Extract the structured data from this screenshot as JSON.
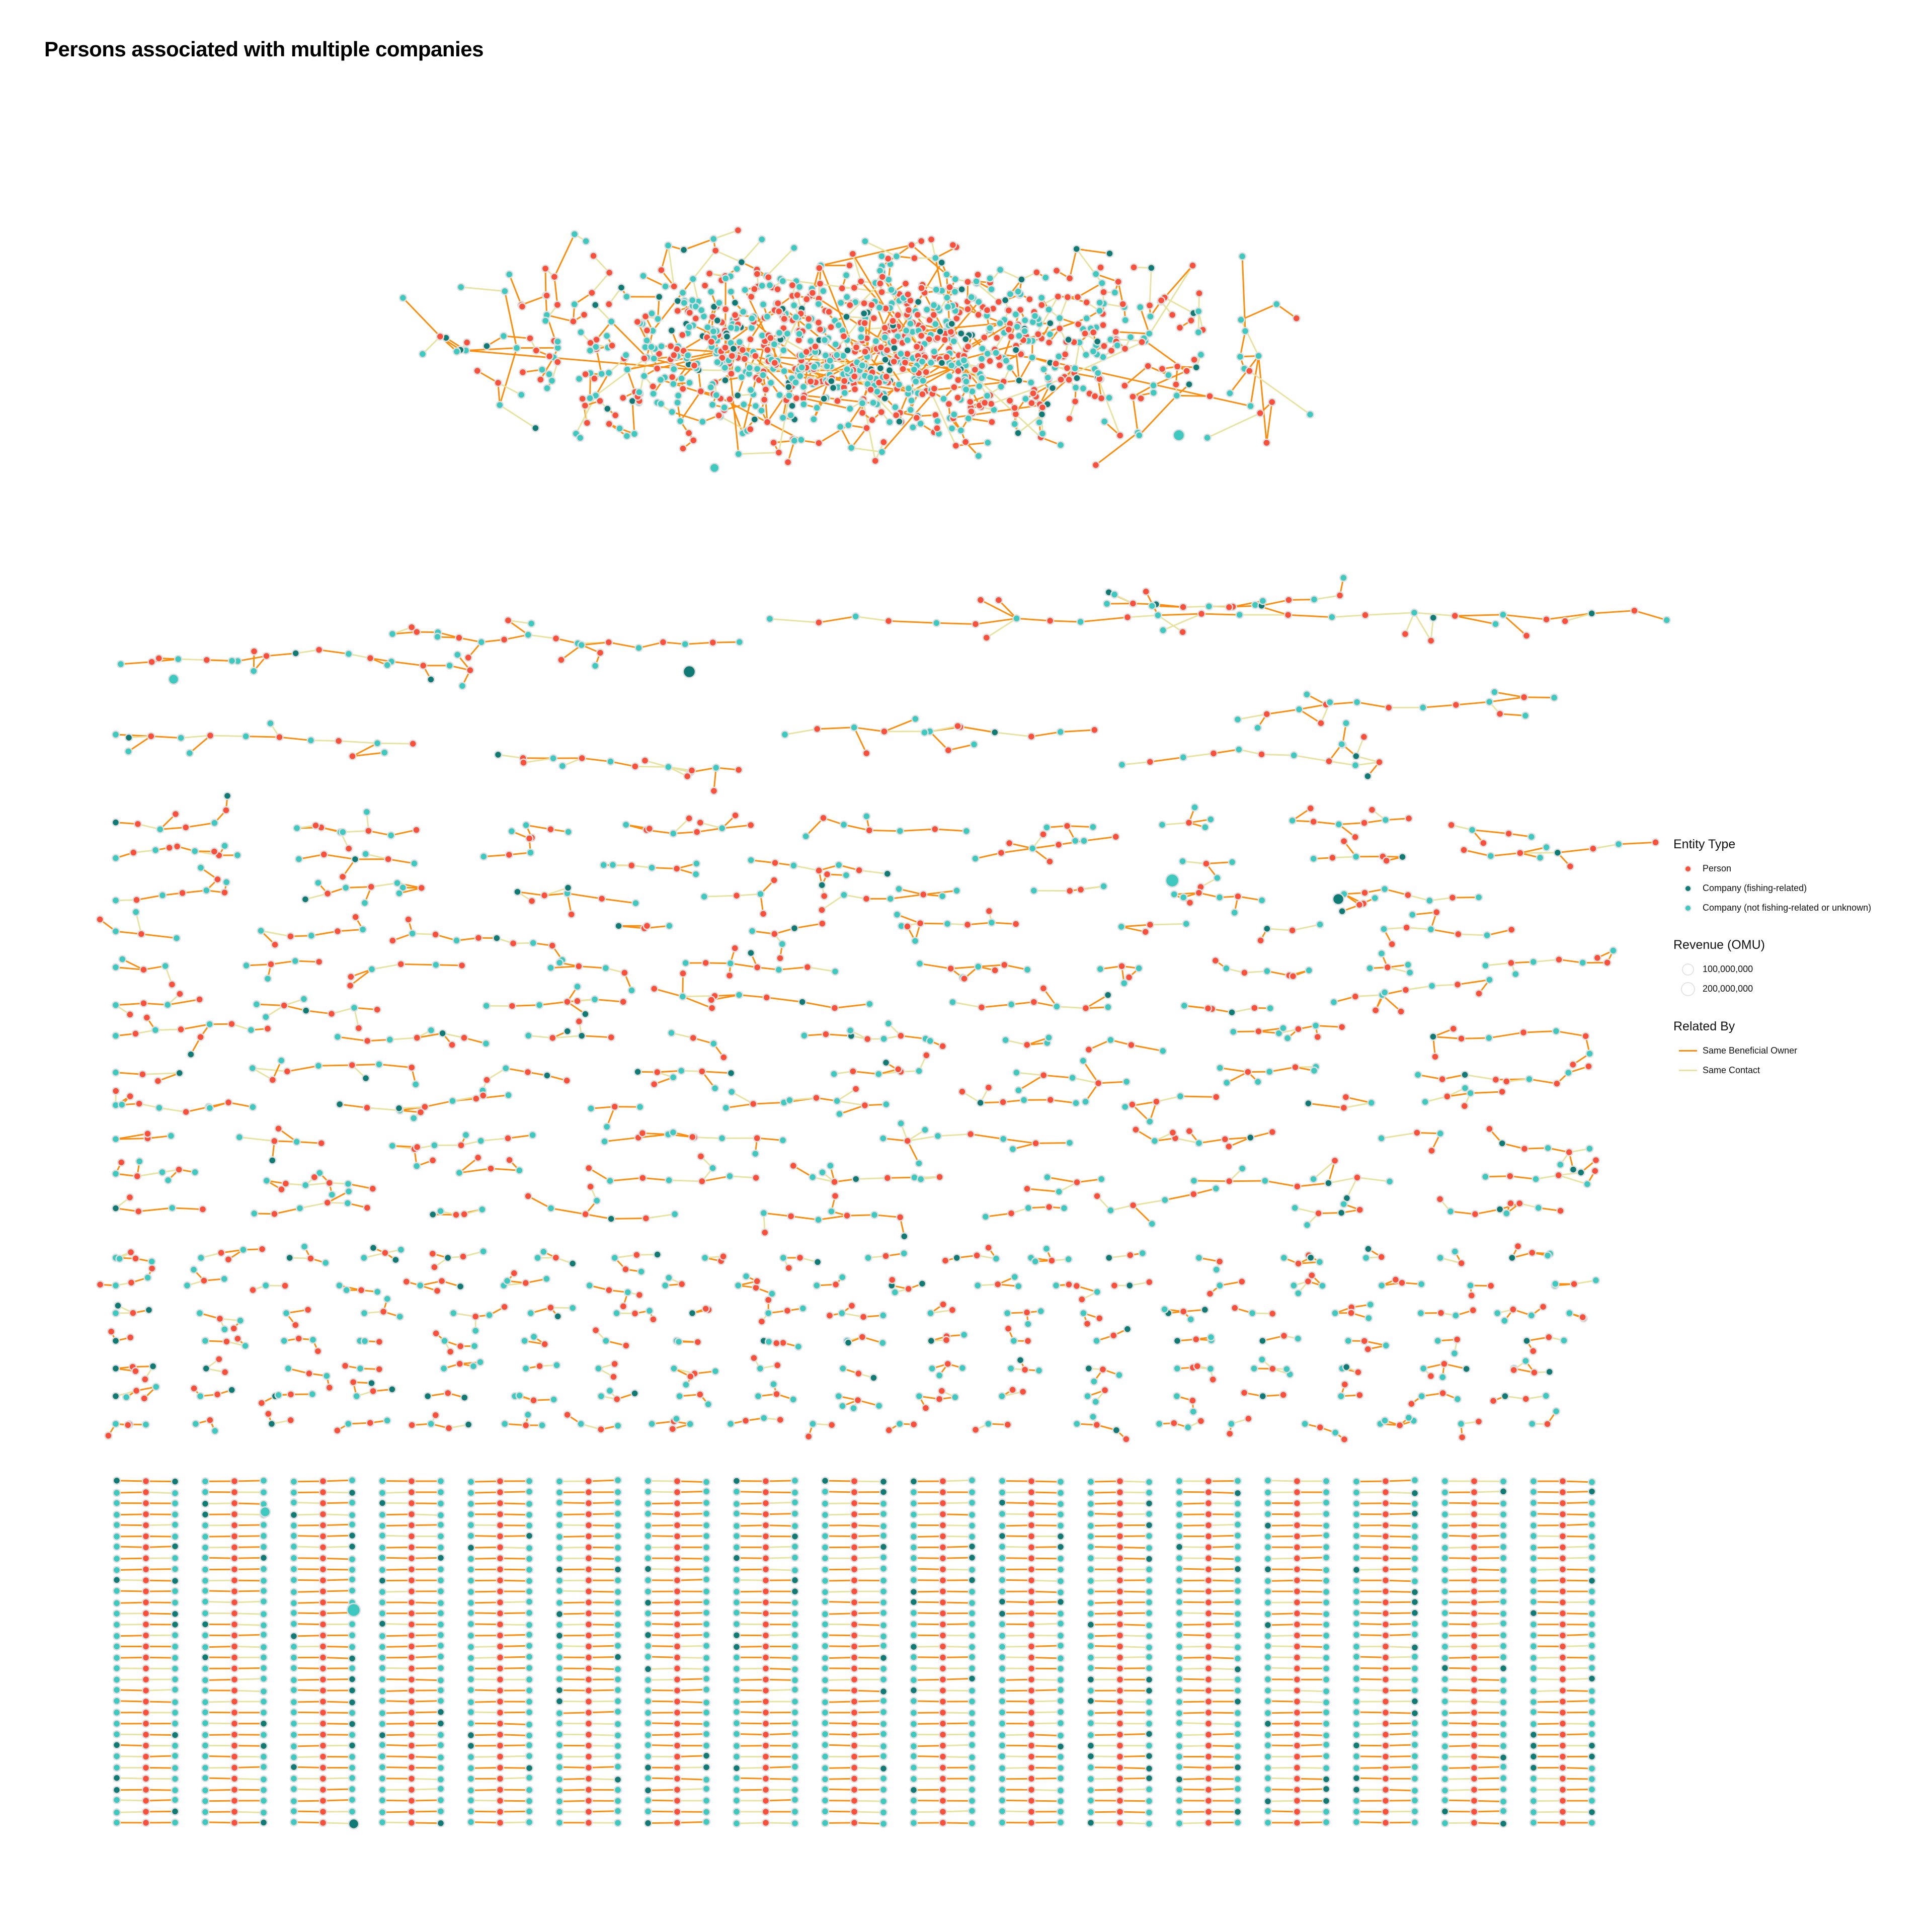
{
  "title": "Persons associated with multiple companies",
  "colors": {
    "person": "#f94f3b",
    "company_fishing": "#107a74",
    "company_other": "#3ec9c0",
    "same_beneficial_owner": "#ff8c0a",
    "same_contact": "#e8e3a0",
    "node_stroke": "#dedede"
  },
  "legend": {
    "entity_type": {
      "title": "Entity Type",
      "items": [
        {
          "label": "Person",
          "color": "#f94f3b"
        },
        {
          "label": "Company (fishing-related)",
          "color": "#107a74"
        },
        {
          "label": "Company (not fishing-related or unknown)",
          "color": "#3ec9c0"
        }
      ]
    },
    "revenue": {
      "title": "Revenue (OMU)",
      "items": [
        {
          "label": "100,000,000",
          "value": 100000000
        },
        {
          "label": "200,000,000",
          "value": 200000000
        }
      ]
    },
    "related_by": {
      "title": "Related By",
      "items": [
        {
          "label": "Same Beneficial Owner",
          "color": "#ff8c0a"
        },
        {
          "label": "Same Contact",
          "color": "#e8e3a0"
        }
      ]
    }
  },
  "chart_data": {
    "type": "network",
    "title": "Persons associated with multiple companies",
    "node_types": [
      "Person",
      "Company (fishing-related)",
      "Company (not fishing-related or unknown)"
    ],
    "edge_types": [
      "Same Beneficial Owner",
      "Same Contact"
    ],
    "size_encoding": "Revenue (OMU)",
    "layout": "force-directed components; one large central component, many small components, grid of 3-node components at bottom"
  }
}
